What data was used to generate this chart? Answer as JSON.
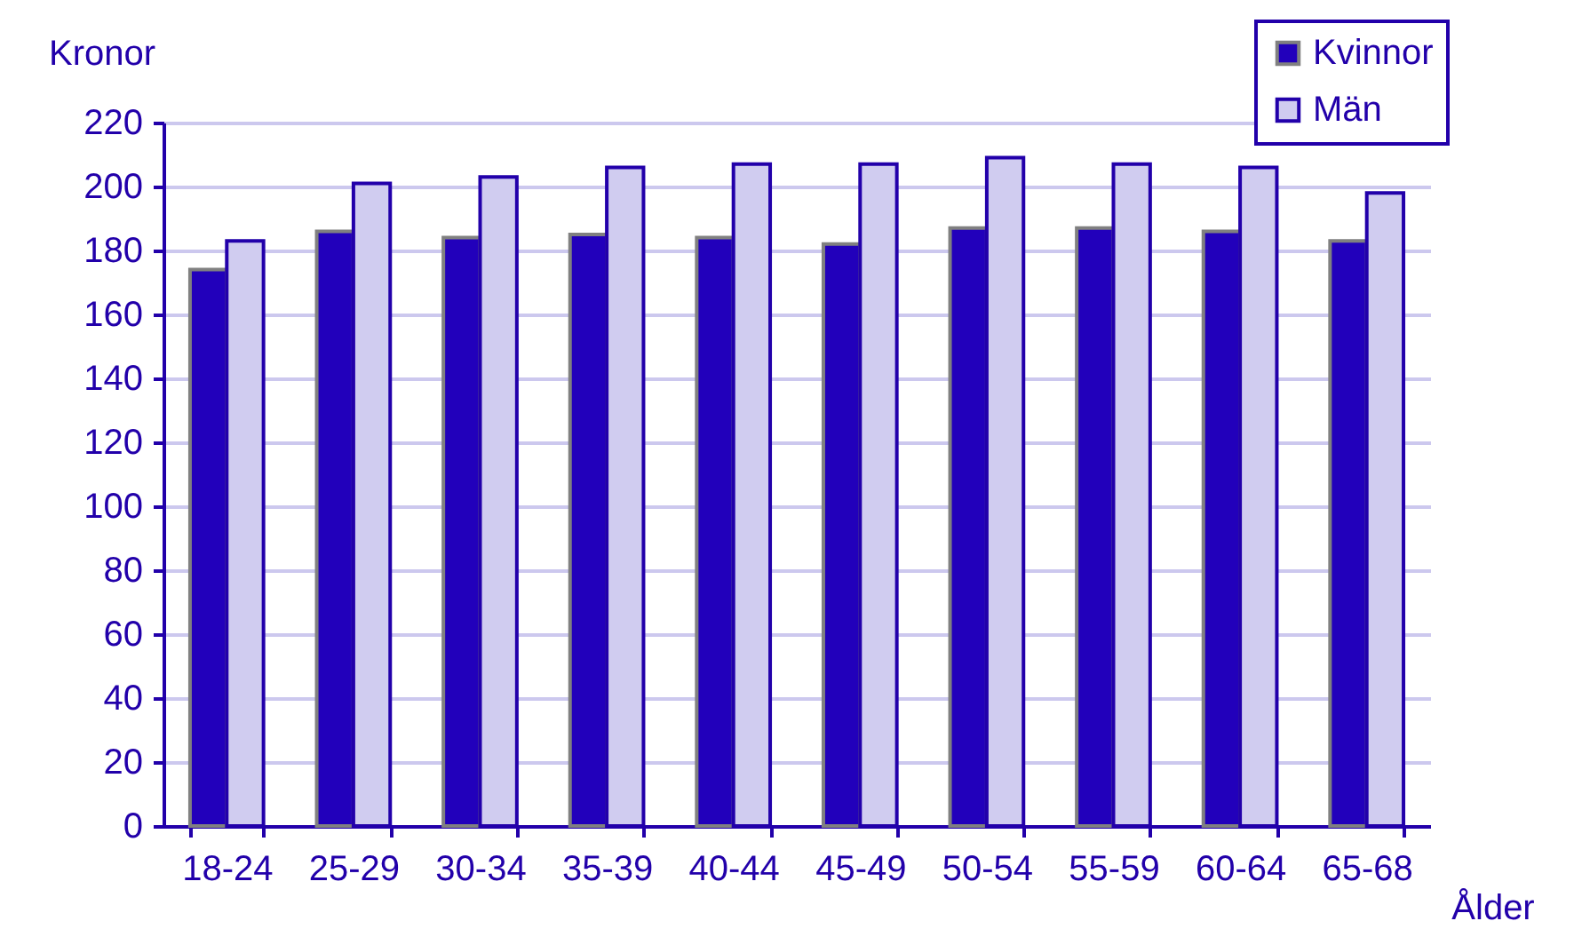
{
  "chart_data": {
    "type": "bar",
    "ylabel": "Kronor",
    "xlabel": "Ålder",
    "categories": [
      "18-24",
      "25-29",
      "30-34",
      "35-39",
      "40-44",
      "45-49",
      "50-54",
      "55-59",
      "60-64",
      "65-68"
    ],
    "series": [
      {
        "name": "Kvinnor",
        "color": "#2200bb",
        "values": [
          174,
          186,
          184,
          185,
          184,
          182,
          187,
          187,
          186,
          183
        ]
      },
      {
        "name": "Män",
        "color": "#d0ccf0",
        "values": [
          183,
          201,
          203,
          206,
          207,
          207,
          209,
          207,
          206,
          198
        ]
      }
    ],
    "ylim": [
      0,
      220
    ],
    "yticks": [
      0,
      20,
      40,
      60,
      80,
      100,
      120,
      140,
      160,
      180,
      200,
      220
    ],
    "grid": "y",
    "legend": "top right"
  }
}
